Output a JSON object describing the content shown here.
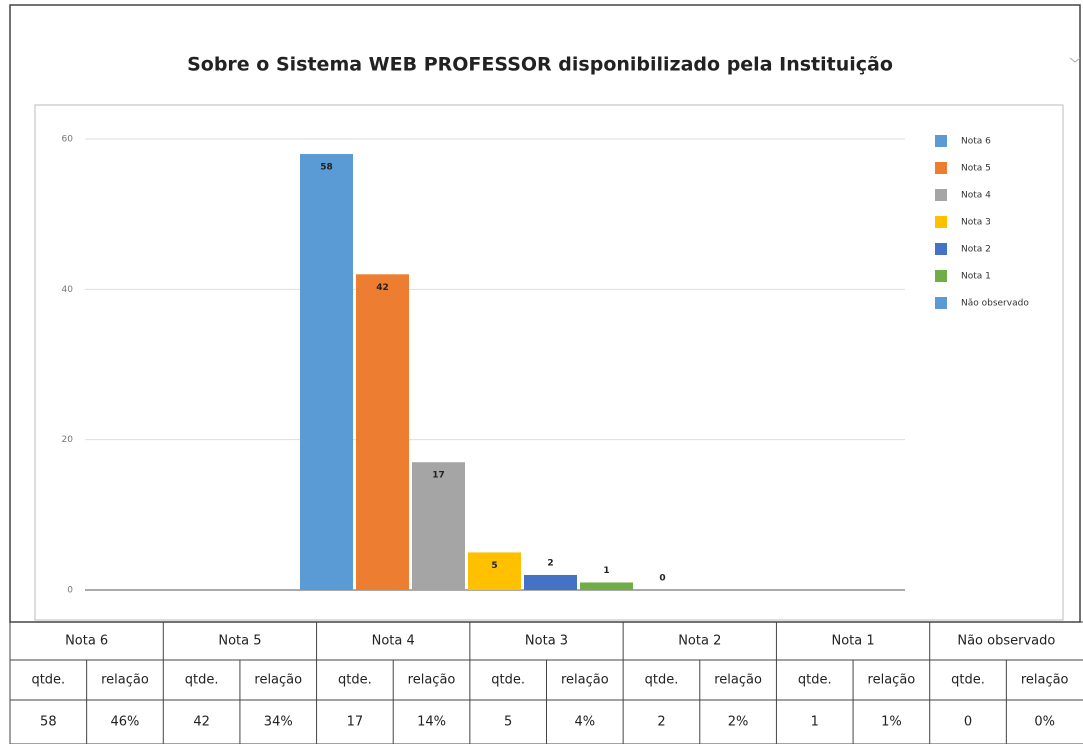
{
  "chart_data": {
    "type": "bar",
    "title": "Sobre o Sistema WEB PROFESSOR disponibilizado pela Instituição",
    "series": [
      {
        "name": "Nota 6",
        "color": "#5b9bd5",
        "values": [
          58
        ]
      },
      {
        "name": "Nota 5",
        "color": "#ed7d31",
        "values": [
          42
        ]
      },
      {
        "name": "Nota 4",
        "color": "#a5a5a5",
        "values": [
          17
        ]
      },
      {
        "name": "Nota 3",
        "color": "#ffc000",
        "values": [
          5
        ]
      },
      {
        "name": "Nota 2",
        "color": "#4472c4",
        "values": [
          2
        ]
      },
      {
        "name": "Nota 1",
        "color": "#70ad47",
        "values": [
          1
        ]
      },
      {
        "name": "Não observado",
        "color": "#5b9bd5",
        "values": [
          0
        ]
      }
    ],
    "ylim": [
      0,
      60
    ],
    "yticks": [
      0,
      20,
      40,
      60
    ],
    "grid": true,
    "legend": "right"
  },
  "table": {
    "subheaders": [
      "qtde.",
      "relação"
    ],
    "shares": [
      "46%",
      "34%",
      "14%",
      "4%",
      "2%",
      "1%",
      "0%"
    ]
  }
}
